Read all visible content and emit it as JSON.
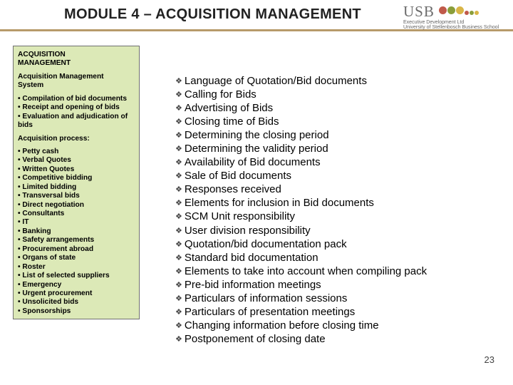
{
  "title": "MODULE 4 – ACQUISITION MANAGEMENT",
  "logo": {
    "usb": "USB",
    "line1": "Executive Development Ltd",
    "line2": "University of Stellenbosch Business School"
  },
  "sidebar": {
    "heading": "ACQUISITION\nMANAGEMENT",
    "sub1": "Acquisition Management\nSystem",
    "list1": [
      "Compilation of bid documents",
      "Receipt and opening of bids",
      "Evaluation and adjudication of bids"
    ],
    "sub2": "Acquisition process:",
    "list2": [
      "Petty cash",
      "Verbal Quotes",
      "Written Quotes",
      "Competitive bidding",
      "Limited bidding",
      "Transversal bids",
      "Direct negotiation",
      "Consultants",
      "IT",
      "Banking",
      "Safety arrangements",
      "Procurement abroad",
      "Organs of state",
      "Roster",
      "List of selected suppliers",
      "Emergency",
      "Urgent procurement",
      "Unsolicited bids",
      "Sponsorships"
    ]
  },
  "main": {
    "items": [
      "Language of Quotation/Bid documents",
      "Calling for Bids",
      "Advertising of Bids",
      "Closing time of Bids",
      "Determining the closing period",
      "Determining the validity period",
      "Availability of Bid documents",
      "Sale of Bid documents",
      "Responses received",
      "Elements for inclusion in Bid documents",
      "SCM Unit responsibility",
      "User division responsibility",
      "Quotation/bid documentation pack",
      "Standard bid documentation",
      "Elements to take into account when compiling pack",
      "Pre-bid information meetings",
      "Particulars of information sessions",
      "Particulars of presentation meetings",
      "Changing information before closing time",
      "Postponement of closing date"
    ]
  },
  "page": "23"
}
